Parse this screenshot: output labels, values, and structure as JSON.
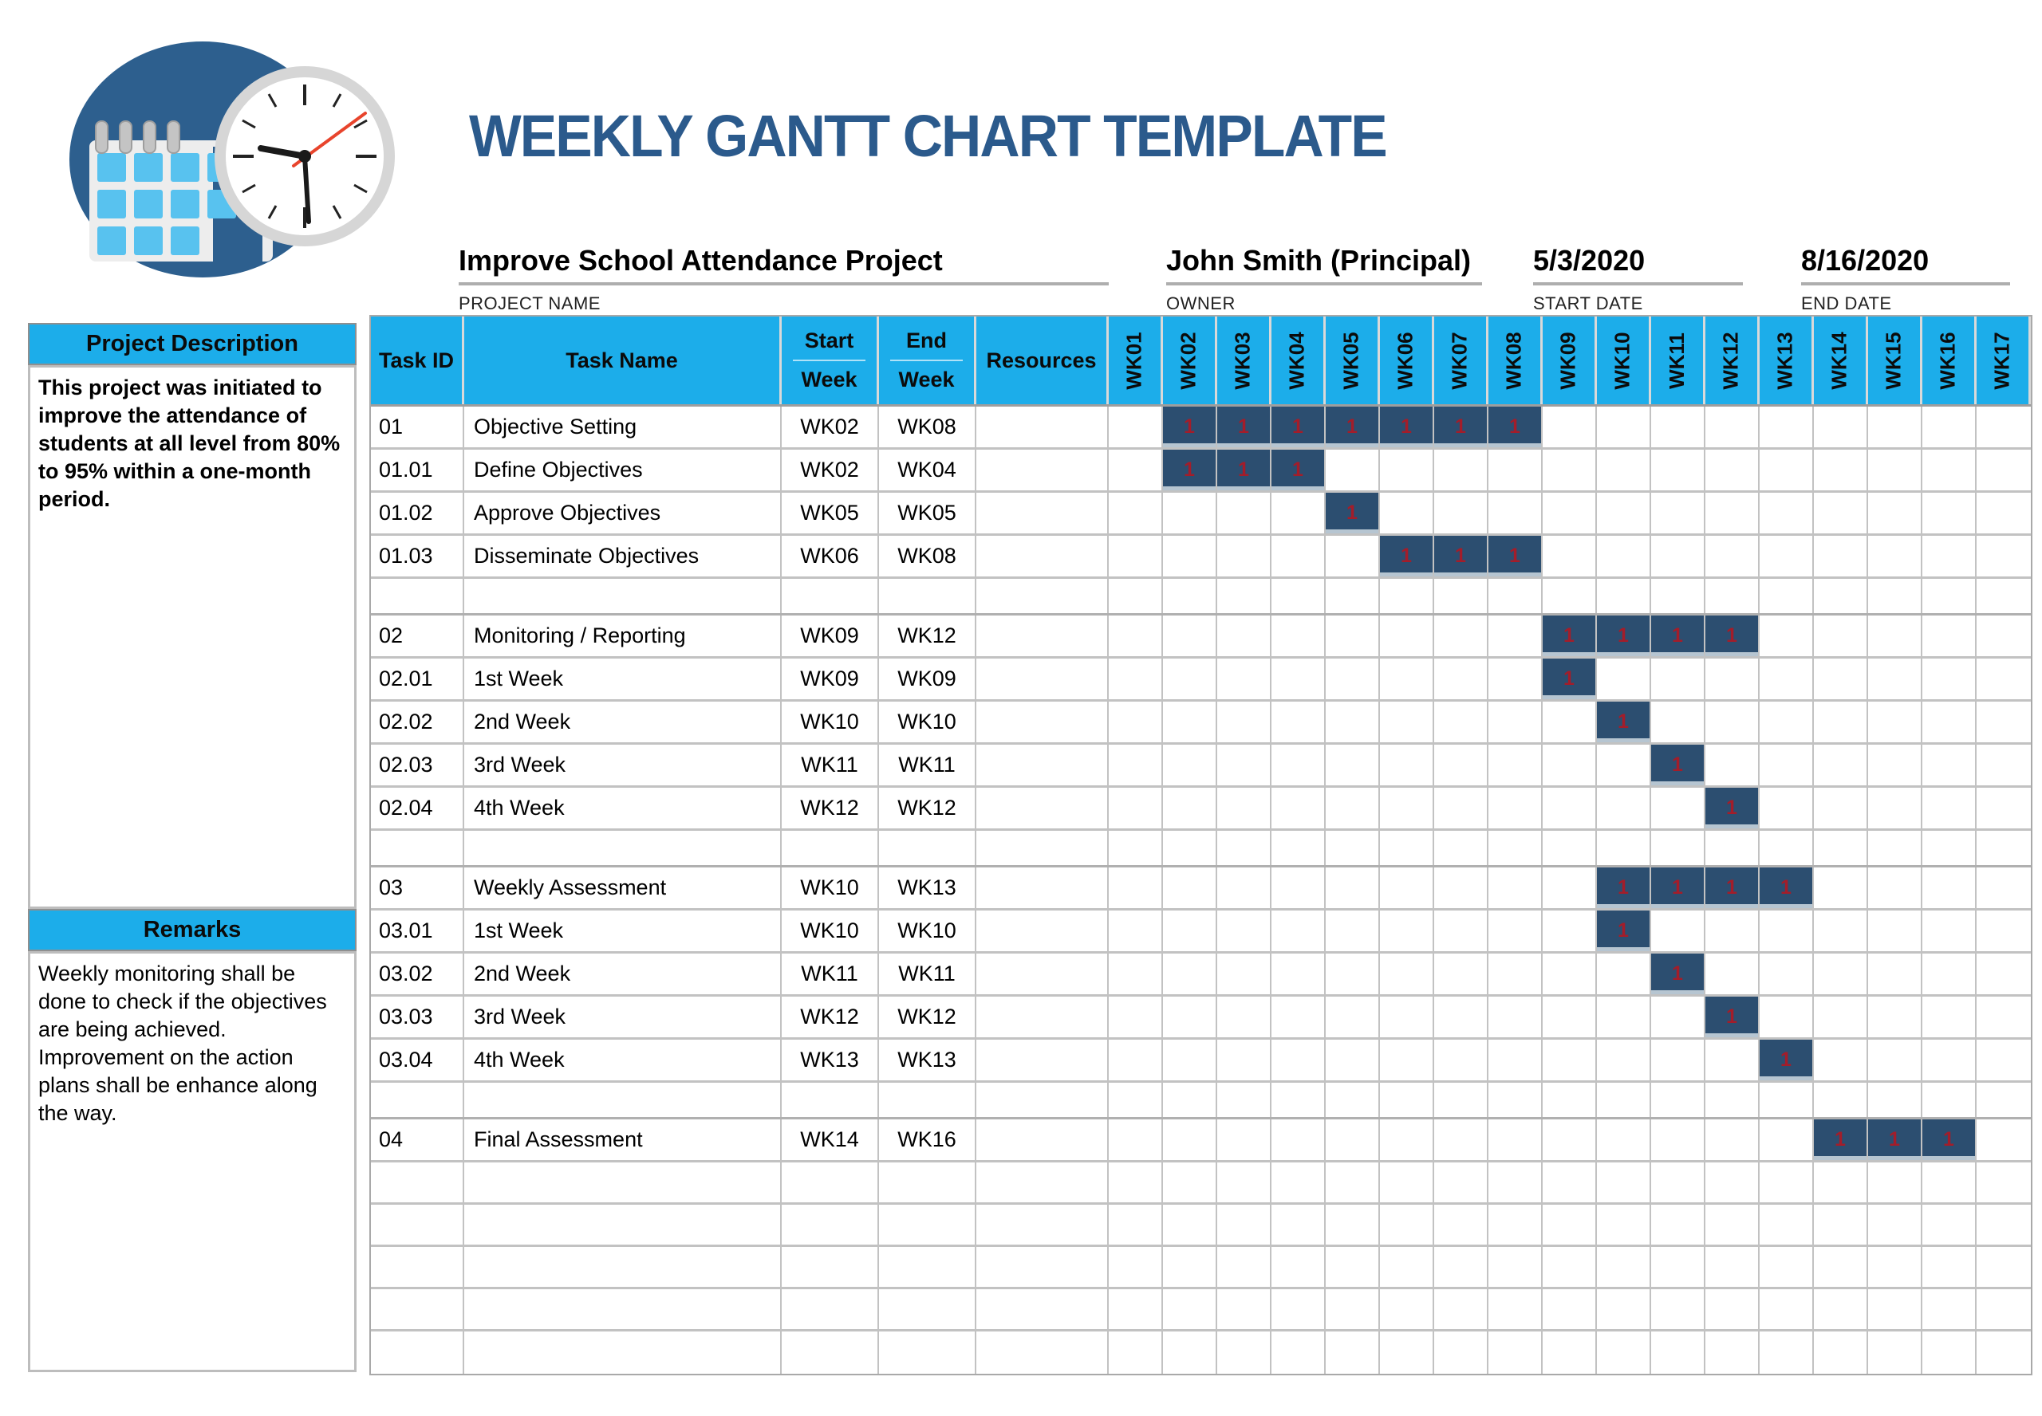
{
  "title": "WEEKLY GANTT CHART TEMPLATE",
  "logo": {
    "icon": "calendar-clock-icon"
  },
  "project_info": {
    "name": {
      "value": "Improve School Attendance Project",
      "label": "PROJECT NAME"
    },
    "owner": {
      "value": "John Smith (Principal)",
      "label": "OWNER"
    },
    "start_date": {
      "value": "5/3/2020",
      "label": "START DATE"
    },
    "end_date": {
      "value": "8/16/2020",
      "label": "END DATE"
    }
  },
  "sidebar": {
    "description_header": "Project Description",
    "description_body": "This project was initiated to improve the attendance of students at all level from 80% to 95% within a one-month period.",
    "remarks_header": "Remarks",
    "remarks_body": "Weekly monitoring shall be done to check if the objectives are being achieved.\nImprovement on the action plans shall be enhance along the way."
  },
  "chart_data": {
    "type": "table",
    "subtype": "gantt-weekly",
    "title": "WEEKLY GANTT CHART TEMPLATE",
    "legend_position": "none",
    "grid": true,
    "cell_mark": "1",
    "columns": {
      "task_id": "Task ID",
      "task_name": "Task Name",
      "start_week": [
        "Start",
        "Week"
      ],
      "end_week": [
        "End",
        "Week"
      ],
      "resources": "Resources"
    },
    "weeks": [
      "WK01",
      "WK02",
      "WK03",
      "WK04",
      "WK05",
      "WK06",
      "WK07",
      "WK08",
      "WK09",
      "WK10",
      "WK11",
      "WK12",
      "WK13",
      "WK14",
      "WK15",
      "WK16",
      "WK17"
    ],
    "rows": [
      {
        "task_id": "01",
        "task_name": "Objective Setting",
        "start_week": "WK02",
        "end_week": "WK08",
        "resources": "",
        "bar": [
          2,
          8
        ]
      },
      {
        "task_id": "01.01",
        "task_name": "Define Objectives",
        "start_week": "WK02",
        "end_week": "WK04",
        "resources": "",
        "bar": [
          2,
          4
        ]
      },
      {
        "task_id": "01.02",
        "task_name": "Approve Objectives",
        "start_week": "WK05",
        "end_week": "WK05",
        "resources": "",
        "bar": [
          5,
          5
        ]
      },
      {
        "task_id": "01.03",
        "task_name": "Disseminate Objectives",
        "start_week": "WK06",
        "end_week": "WK08",
        "resources": "",
        "bar": [
          6,
          8
        ]
      },
      {
        "separator": true
      },
      {
        "task_id": "02",
        "task_name": "Monitoring / Reporting",
        "start_week": "WK09",
        "end_week": "WK12",
        "resources": "",
        "bar": [
          9,
          12
        ]
      },
      {
        "task_id": "02.01",
        "task_name": "1st Week",
        "start_week": "WK09",
        "end_week": "WK09",
        "resources": "",
        "bar": [
          9,
          9
        ]
      },
      {
        "task_id": "02.02",
        "task_name": "2nd Week",
        "start_week": "WK10",
        "end_week": "WK10",
        "resources": "",
        "bar": [
          10,
          10
        ]
      },
      {
        "task_id": "02.03",
        "task_name": "3rd Week",
        "start_week": "WK11",
        "end_week": "WK11",
        "resources": "",
        "bar": [
          11,
          11
        ]
      },
      {
        "task_id": "02.04",
        "task_name": "4th Week",
        "start_week": "WK12",
        "end_week": "WK12",
        "resources": "",
        "bar": [
          12,
          12
        ]
      },
      {
        "separator": true
      },
      {
        "task_id": "03",
        "task_name": "Weekly Assessment",
        "start_week": "WK10",
        "end_week": "WK13",
        "resources": "",
        "bar": [
          10,
          13
        ]
      },
      {
        "task_id": "03.01",
        "task_name": "1st Week",
        "start_week": "WK10",
        "end_week": "WK10",
        "resources": "",
        "bar": [
          10,
          10
        ]
      },
      {
        "task_id": "03.02",
        "task_name": "2nd Week",
        "start_week": "WK11",
        "end_week": "WK11",
        "resources": "",
        "bar": [
          11,
          11
        ]
      },
      {
        "task_id": "03.03",
        "task_name": "3rd Week",
        "start_week": "WK12",
        "end_week": "WK12",
        "resources": "",
        "bar": [
          12,
          12
        ]
      },
      {
        "task_id": "03.04",
        "task_name": "4th Week",
        "start_week": "WK13",
        "end_week": "WK13",
        "resources": "",
        "bar": [
          13,
          13
        ]
      },
      {
        "separator": true
      },
      {
        "task_id": "04",
        "task_name": "Final Assessment",
        "start_week": "WK14",
        "end_week": "WK16",
        "resources": "",
        "bar": [
          14,
          16
        ]
      },
      {
        "blank": true
      },
      {
        "blank": true
      },
      {
        "blank": true
      },
      {
        "blank": true
      },
      {
        "blank": true
      }
    ]
  },
  "colors": {
    "header_cyan": "#1CADEA",
    "bar_navy": "#2C4E70",
    "bar_mark_red": "#A31D2A",
    "title_blue": "#2B5A8C",
    "logo_circle_blue": "#2D5F8E",
    "logo_square_blue": "#58C2EF"
  }
}
